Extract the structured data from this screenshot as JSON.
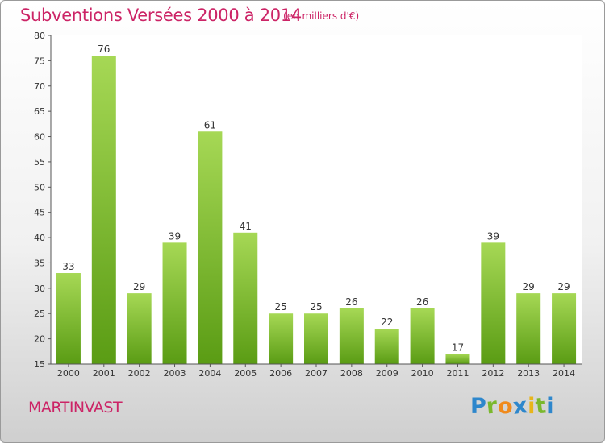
{
  "chart_data": {
    "type": "bar",
    "title": "Subventions Versées 2000 à 2014",
    "subtitle": "(en milliers d'€)",
    "categories": [
      "2000",
      "2001",
      "2002",
      "2003",
      "2004",
      "2005",
      "2006",
      "2007",
      "2008",
      "2009",
      "2010",
      "2011",
      "2012",
      "2013",
      "2014"
    ],
    "values": [
      33,
      76,
      29,
      39,
      61,
      41,
      25,
      25,
      26,
      22,
      26,
      17,
      39,
      29,
      29
    ],
    "ylim": [
      15,
      80
    ],
    "yticks": [
      15,
      20,
      25,
      30,
      35,
      40,
      45,
      50,
      55,
      60,
      65,
      70,
      75,
      80
    ],
    "grid": false,
    "legend": "none",
    "bar_color_top": "#a6d855",
    "bar_color_bottom": "#5a9c14"
  },
  "location": "MARTINVAST",
  "brand": {
    "letters": [
      "P",
      "r",
      "o",
      "x",
      "i",
      "t",
      "i"
    ],
    "colors": [
      "#2e87cc",
      "#7ab82d",
      "#f08a1c",
      "#2e87cc",
      "#e8b51a",
      "#7ab82d",
      "#2e87cc"
    ]
  }
}
